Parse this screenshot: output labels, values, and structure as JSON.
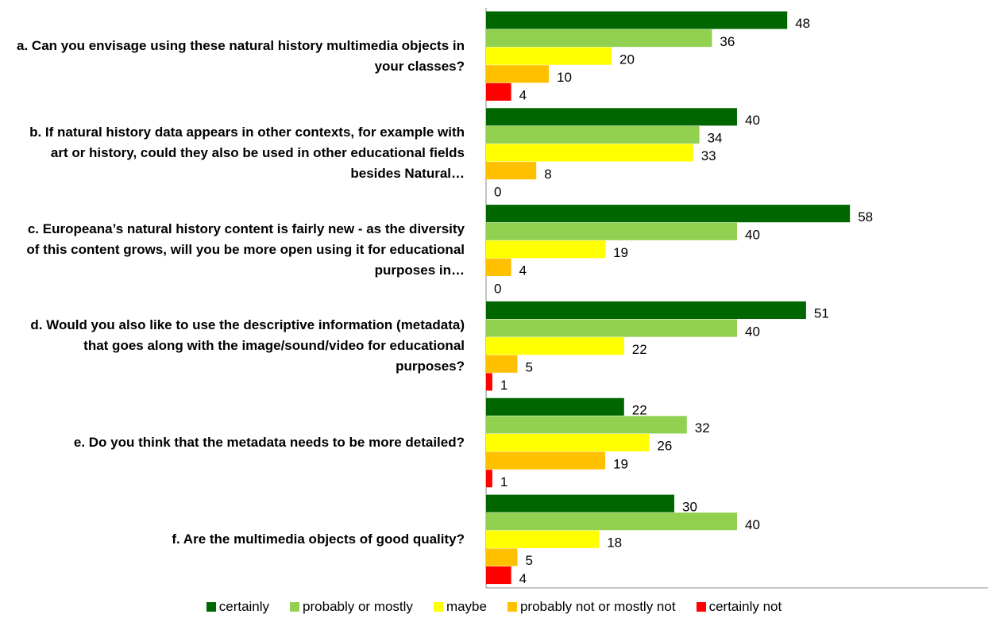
{
  "chart_data": {
    "type": "barh",
    "categories": [
      "a. Can you envisage using these natural history multimedia objects in your classes?",
      "b. If natural history data appears in other contexts, for example with art or history, could they also be used in other educational fields besides Natural…",
      "c. Europeana’s natural history content is fairly new - as the diversity of this content grows, will you be more open using it for educational purposes in…",
      "d. Would you also like to use the descriptive information (metadata) that goes along with the image/sound/video for educational purposes?",
      "e. Do you think that the metadata needs to be more detailed?",
      "f. Are the multimedia objects of good quality?"
    ],
    "series": [
      {
        "name": "certainly",
        "color": "#006600",
        "values": [
          48,
          40,
          58,
          51,
          22,
          30
        ]
      },
      {
        "name": "probably or mostly",
        "color": "#92d050",
        "values": [
          36,
          34,
          40,
          40,
          32,
          40
        ]
      },
      {
        "name": "maybe",
        "color": "#ffff00",
        "values": [
          20,
          33,
          19,
          22,
          26,
          18
        ]
      },
      {
        "name": "probably not or mostly not",
        "color": "#ffc000",
        "values": [
          10,
          8,
          4,
          5,
          19,
          5
        ]
      },
      {
        "name": "certainly not",
        "color": "#ff0000",
        "values": [
          4,
          0,
          0,
          1,
          1,
          4
        ]
      }
    ],
    "xlim": [
      0,
      80
    ],
    "legend": "bottom"
  }
}
